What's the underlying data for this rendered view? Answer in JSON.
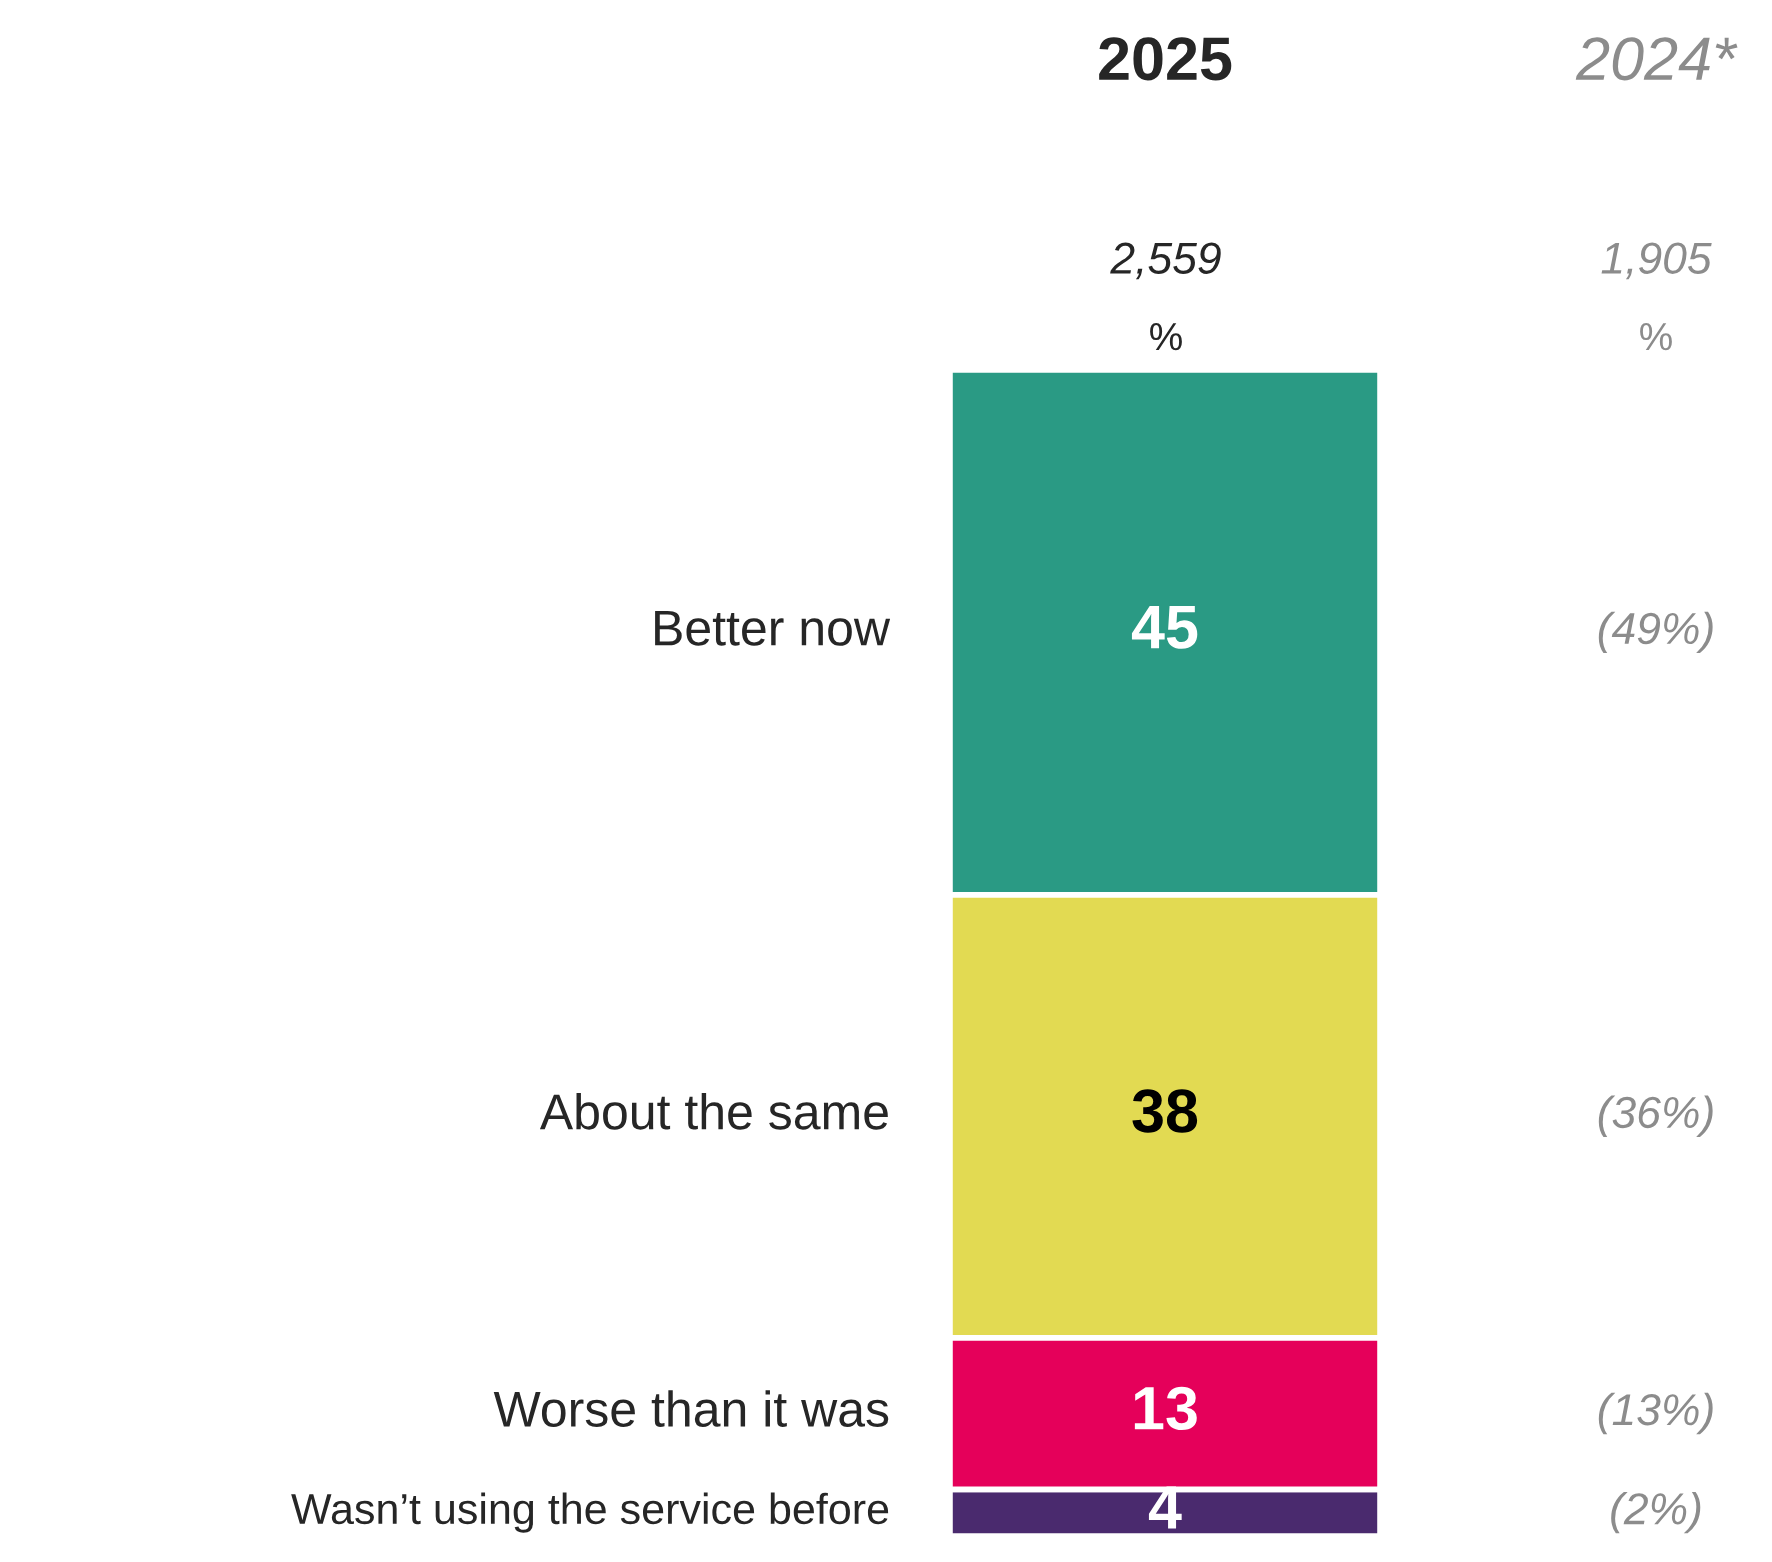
{
  "chart_data": {
    "type": "bar",
    "stacked": true,
    "categories": [
      "2025"
    ],
    "data_labels": true,
    "tick_labels": false,
    "legend": false,
    "series": [
      {
        "name": "Wasn’t using the service before",
        "color": "#4a2a6e",
        "values": [
          4
        ]
      },
      {
        "name": "Worse than it was",
        "color": "#e5005a",
        "values": [
          13
        ]
      },
      {
        "name": "About the same",
        "color": "#e2da52",
        "values": [
          38
        ]
      },
      {
        "name": "Better now",
        "color": "#2a9a84",
        "values": [
          45
        ]
      }
    ],
    "annotations": [
      "2024*",
      "2,559",
      "%",
      "1,905",
      "%",
      "(2%)",
      "(13%)",
      "(36%)",
      "(49%)"
    ]
  }
}
